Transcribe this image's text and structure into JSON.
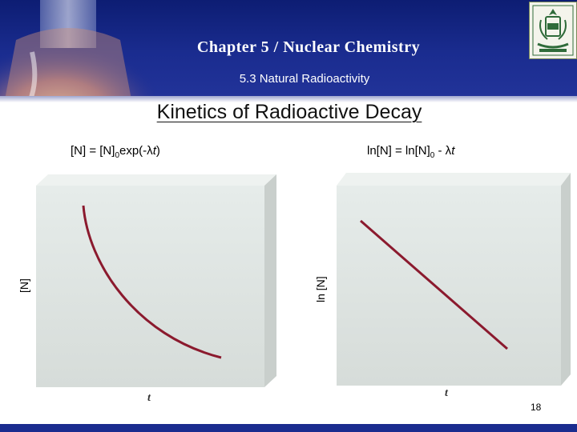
{
  "header": {
    "chapter_title": "Chapter 5 / Nuclear Chemistry",
    "section_title": "5.3 Natural Radioactivity"
  },
  "slide_title": "Kinetics of Radioactive Decay",
  "plots": [
    {
      "equation_prefix": "[N] = [N]",
      "equation_sub": "0",
      "equation_suffix": "exp(-λ",
      "equation_var": "t",
      "equation_end": ")",
      "ylabel": "[N]",
      "xlabel": "t",
      "curve": "exponential decay"
    },
    {
      "equation_prefix": "ln[N] = ln[N]",
      "equation_sub": "0",
      "equation_suffix": " - λ",
      "equation_var": "t",
      "equation_end": "",
      "ylabel": "ln [N]",
      "xlabel": "t",
      "curve": "straight line, negative slope"
    }
  ],
  "page_number": "18",
  "colors": {
    "header": "#1a2c8f",
    "curve": "#8b1a2e",
    "panel": "#dde4e1"
  }
}
